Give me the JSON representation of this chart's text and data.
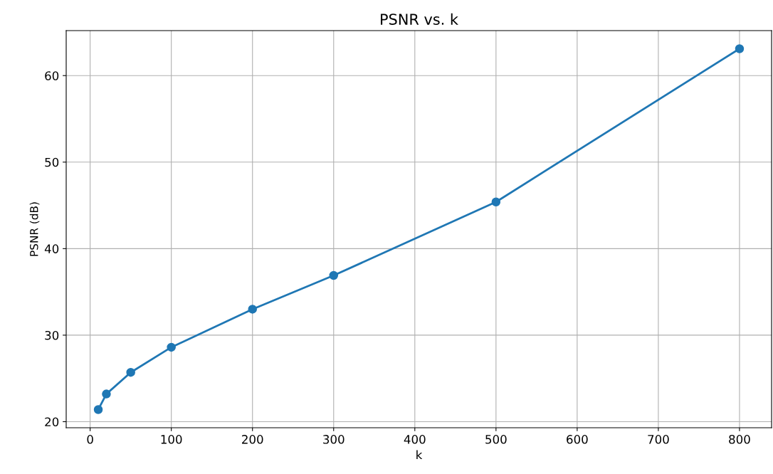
{
  "chart_data": {
    "type": "line",
    "title": "PSNR vs. k",
    "xlabel": "k",
    "ylabel": "PSNR (dB)",
    "x": [
      10,
      20,
      50,
      100,
      200,
      300,
      500,
      800
    ],
    "series": [
      {
        "color": "#1f77b4",
        "values": [
          21.4,
          23.2,
          25.7,
          28.6,
          33.0,
          36.9,
          45.4,
          63.1
        ]
      }
    ],
    "xlim": [
      -29.5,
      839.5
    ],
    "xticks": [
      0,
      100,
      200,
      300,
      400,
      500,
      600,
      700,
      800
    ],
    "ylim": [
      19.3,
      65.2
    ],
    "yticks": [
      20,
      30,
      40,
      50,
      60
    ],
    "grid": true,
    "marker": "circle",
    "line_style": "solid"
  }
}
